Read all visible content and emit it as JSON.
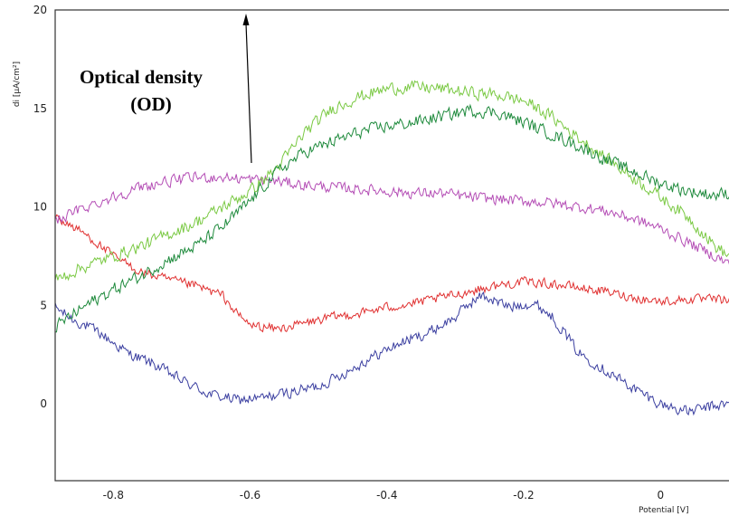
{
  "chart_data": {
    "type": "line",
    "title": "",
    "xlabel": "Potential [V]",
    "ylabel": "di [µA/cm²]",
    "xlim": [
      -0.885,
      0.12
    ],
    "ylim": [
      -3.9,
      20
    ],
    "xticks": [
      -0.8,
      -0.6,
      -0.4,
      -0.2,
      0
    ],
    "xtick_labels": [
      "-0.8",
      "-0.6",
      "-0.4",
      "-0.2",
      "0"
    ],
    "yticks": [
      0,
      5,
      10,
      15,
      20
    ],
    "ytick_labels": [
      "0",
      "5",
      "10",
      "15",
      "20"
    ],
    "grid": false,
    "legend": "none",
    "annotation": {
      "lines": [
        "Optical density",
        "(OD)"
      ],
      "arrow": "up"
    },
    "series": [
      {
        "color": "#3b3fa0",
        "noise": 0.35,
        "points": [
          [
            -0.885,
            4.9
          ],
          [
            -0.86,
            4.3
          ],
          [
            -0.82,
            3.6
          ],
          [
            -0.78,
            2.6
          ],
          [
            -0.74,
            2.0
          ],
          [
            -0.7,
            1.2
          ],
          [
            -0.66,
            0.5
          ],
          [
            -0.62,
            0.2
          ],
          [
            -0.58,
            0.3
          ],
          [
            -0.54,
            0.6
          ],
          [
            -0.5,
            0.9
          ],
          [
            -0.46,
            1.6
          ],
          [
            -0.42,
            2.4
          ],
          [
            -0.38,
            3.1
          ],
          [
            -0.34,
            3.6
          ],
          [
            -0.3,
            4.4
          ],
          [
            -0.28,
            5.1
          ],
          [
            -0.26,
            5.5
          ],
          [
            -0.24,
            5.2
          ],
          [
            -0.22,
            4.9
          ],
          [
            -0.2,
            5.1
          ],
          [
            -0.18,
            5.0
          ],
          [
            -0.16,
            4.5
          ],
          [
            -0.14,
            3.6
          ],
          [
            -0.12,
            2.6
          ],
          [
            -0.08,
            1.7
          ],
          [
            -0.04,
            0.8
          ],
          [
            0.0,
            0.0
          ],
          [
            0.04,
            -0.4
          ],
          [
            0.08,
            -0.1
          ],
          [
            0.12,
            0.1
          ]
        ]
      },
      {
        "color": "#e03030",
        "noise": 0.3,
        "points": [
          [
            -0.885,
            9.5
          ],
          [
            -0.84,
            8.6
          ],
          [
            -0.8,
            7.5
          ],
          [
            -0.76,
            6.7
          ],
          [
            -0.72,
            6.3
          ],
          [
            -0.68,
            6.0
          ],
          [
            -0.64,
            5.5
          ],
          [
            -0.62,
            4.6
          ],
          [
            -0.6,
            4.0
          ],
          [
            -0.56,
            3.8
          ],
          [
            -0.52,
            4.1
          ],
          [
            -0.48,
            4.4
          ],
          [
            -0.44,
            4.6
          ],
          [
            -0.4,
            4.9
          ],
          [
            -0.36,
            5.1
          ],
          [
            -0.32,
            5.4
          ],
          [
            -0.28,
            5.7
          ],
          [
            -0.24,
            6.0
          ],
          [
            -0.2,
            6.2
          ],
          [
            -0.16,
            6.1
          ],
          [
            -0.12,
            5.9
          ],
          [
            -0.08,
            5.7
          ],
          [
            -0.04,
            5.4
          ],
          [
            0.0,
            5.2
          ],
          [
            0.04,
            5.3
          ],
          [
            0.08,
            5.3
          ],
          [
            0.12,
            5.2
          ]
        ]
      },
      {
        "color": "#b44db5",
        "noise": 0.35,
        "points": [
          [
            -0.885,
            9.3
          ],
          [
            -0.84,
            10.0
          ],
          [
            -0.8,
            10.5
          ],
          [
            -0.76,
            11.0
          ],
          [
            -0.72,
            11.3
          ],
          [
            -0.68,
            11.5
          ],
          [
            -0.64,
            11.5
          ],
          [
            -0.6,
            11.4
          ],
          [
            -0.56,
            11.3
          ],
          [
            -0.52,
            11.1
          ],
          [
            -0.48,
            11.0
          ],
          [
            -0.44,
            10.9
          ],
          [
            -0.4,
            10.8
          ],
          [
            -0.36,
            10.7
          ],
          [
            -0.32,
            10.7
          ],
          [
            -0.28,
            10.5
          ],
          [
            -0.24,
            10.4
          ],
          [
            -0.2,
            10.3
          ],
          [
            -0.16,
            10.2
          ],
          [
            -0.12,
            10.0
          ],
          [
            -0.08,
            9.8
          ],
          [
            -0.04,
            9.4
          ],
          [
            0.0,
            8.9
          ],
          [
            0.04,
            8.2
          ],
          [
            0.08,
            7.5
          ],
          [
            0.12,
            6.7
          ]
        ]
      },
      {
        "color": "#7ac943",
        "noise": 0.4,
        "points": [
          [
            -0.885,
            6.3
          ],
          [
            -0.84,
            7.0
          ],
          [
            -0.8,
            7.5
          ],
          [
            -0.76,
            8.0
          ],
          [
            -0.72,
            8.6
          ],
          [
            -0.68,
            9.2
          ],
          [
            -0.64,
            10.0
          ],
          [
            -0.6,
            10.8
          ],
          [
            -0.56,
            12.0
          ],
          [
            -0.52,
            13.8
          ],
          [
            -0.48,
            15.0
          ],
          [
            -0.44,
            15.6
          ],
          [
            -0.4,
            16.0
          ],
          [
            -0.36,
            16.1
          ],
          [
            -0.32,
            16.0
          ],
          [
            -0.28,
            15.8
          ],
          [
            -0.24,
            15.7
          ],
          [
            -0.2,
            15.4
          ],
          [
            -0.16,
            14.6
          ],
          [
            -0.12,
            13.5
          ],
          [
            -0.08,
            12.5
          ],
          [
            -0.04,
            11.5
          ],
          [
            0.0,
            10.5
          ],
          [
            0.04,
            9.5
          ],
          [
            0.08,
            8.0
          ],
          [
            0.12,
            7.0
          ]
        ]
      },
      {
        "color": "#1e8a3c",
        "noise": 0.4,
        "points": [
          [
            -0.885,
            3.9
          ],
          [
            -0.84,
            5.0
          ],
          [
            -0.8,
            5.8
          ],
          [
            -0.76,
            6.5
          ],
          [
            -0.72,
            7.3
          ],
          [
            -0.68,
            8.0
          ],
          [
            -0.64,
            9.0
          ],
          [
            -0.6,
            10.3
          ],
          [
            -0.56,
            11.8
          ],
          [
            -0.52,
            12.8
          ],
          [
            -0.48,
            13.3
          ],
          [
            -0.44,
            13.8
          ],
          [
            -0.4,
            14.1
          ],
          [
            -0.36,
            14.3
          ],
          [
            -0.32,
            14.6
          ],
          [
            -0.28,
            14.9
          ],
          [
            -0.24,
            14.8
          ],
          [
            -0.2,
            14.3
          ],
          [
            -0.16,
            13.7
          ],
          [
            -0.12,
            13.1
          ],
          [
            -0.08,
            12.4
          ],
          [
            -0.04,
            11.8
          ],
          [
            0.0,
            11.2
          ],
          [
            0.04,
            10.8
          ],
          [
            0.08,
            10.6
          ],
          [
            0.12,
            10.8
          ]
        ]
      }
    ]
  }
}
